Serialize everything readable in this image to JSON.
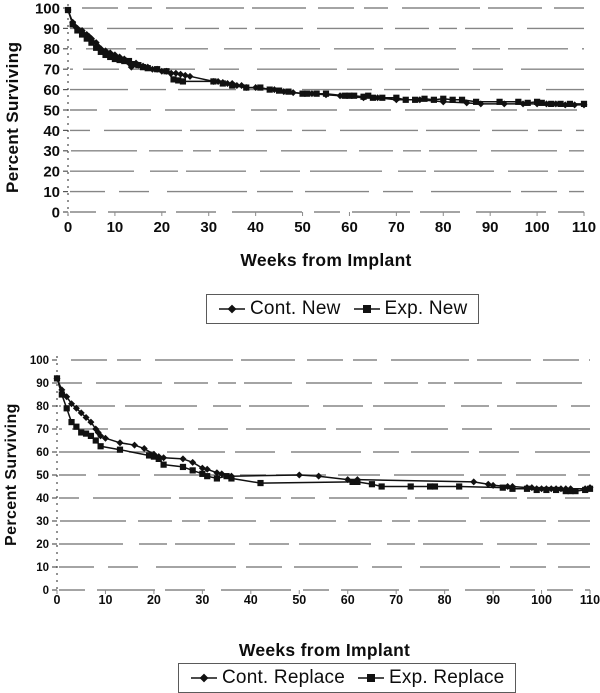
{
  "page": {
    "background": "#ffffff",
    "ink": "#111111",
    "grid_color": "#868686"
  },
  "chart_data": [
    {
      "id": "new-implants-survival",
      "type": "line",
      "title": "",
      "xlabel": "Weeks from Implant",
      "ylabel": "Percent Surviving",
      "xlim": [
        0,
        110
      ],
      "ylim": [
        0,
        100
      ],
      "xticks": [
        0,
        10,
        20,
        30,
        40,
        50,
        60,
        70,
        80,
        90,
        100,
        110
      ],
      "yticks": [
        0,
        10,
        20,
        30,
        40,
        50,
        60,
        70,
        80,
        90,
        100
      ],
      "grid": "horizontal broken gray lines",
      "legend_position": "below chart, boxed",
      "series": [
        {
          "name": "Cont. New",
          "marker": "diamond",
          "color": "#111111",
          "points": [
            [
              0,
              99
            ],
            [
              1,
              93
            ],
            [
              1.5,
              91
            ],
            [
              2,
              90
            ],
            [
              3,
              89
            ],
            [
              4,
              87
            ],
            [
              4.5,
              86
            ],
            [
              5,
              85
            ],
            [
              6,
              83
            ],
            [
              6.5,
              81
            ],
            [
              7,
              80
            ],
            [
              8,
              79
            ],
            [
              9,
              78
            ],
            [
              10,
              77
            ],
            [
              11,
              76
            ],
            [
              12,
              75
            ],
            [
              12.5,
              74
            ],
            [
              13,
              73
            ],
            [
              13.5,
              71
            ],
            [
              14.5,
              73
            ],
            [
              15,
              72
            ],
            [
              16,
              71.5
            ],
            [
              17,
              71
            ],
            [
              18,
              70
            ],
            [
              19,
              70
            ],
            [
              20,
              69
            ],
            [
              21,
              69
            ],
            [
              22,
              68
            ],
            [
              23,
              68
            ],
            [
              24,
              67.5
            ],
            [
              25,
              67
            ],
            [
              26,
              66.5
            ],
            [
              31,
              64
            ],
            [
              32,
              64
            ],
            [
              33,
              63.5
            ],
            [
              34,
              63
            ],
            [
              35,
              63
            ],
            [
              36,
              62
            ],
            [
              37,
              62
            ],
            [
              38,
              61
            ],
            [
              40,
              61
            ],
            [
              44,
              60
            ],
            [
              46,
              59
            ],
            [
              48,
              58.5
            ],
            [
              52,
              58
            ],
            [
              55,
              57.5
            ],
            [
              58,
              57
            ],
            [
              63,
              56
            ],
            [
              66,
              56
            ],
            [
              70,
              55
            ],
            [
              75,
              55
            ],
            [
              80,
              54
            ],
            [
              85,
              53.5
            ],
            [
              88,
              53
            ],
            [
              93,
              53
            ],
            [
              97,
              53
            ],
            [
              100,
              53
            ],
            [
              102,
              53
            ],
            [
              104,
              53
            ],
            [
              106,
              52.5
            ],
            [
              108,
              52.5
            ],
            [
              110,
              52.5
            ]
          ]
        },
        {
          "name": "Exp. New",
          "marker": "square",
          "color": "#111111",
          "points": [
            [
              0,
              99
            ],
            [
              1,
              92
            ],
            [
              2,
              89
            ],
            [
              3,
              87
            ],
            [
              4,
              85
            ],
            [
              5,
              83
            ],
            [
              6,
              80.5
            ],
            [
              7,
              78.5
            ],
            [
              8,
              77
            ],
            [
              9,
              76
            ],
            [
              10,
              75
            ],
            [
              11,
              74.5
            ],
            [
              12,
              74
            ],
            [
              13,
              74
            ],
            [
              14,
              72.5
            ],
            [
              15,
              72
            ],
            [
              16,
              71
            ],
            [
              17,
              70.5
            ],
            [
              19,
              70
            ],
            [
              21,
              69
            ],
            [
              22.5,
              65
            ],
            [
              23.5,
              64.5
            ],
            [
              24.5,
              64
            ],
            [
              31,
              64
            ],
            [
              33,
              63
            ],
            [
              35,
              62
            ],
            [
              38,
              61
            ],
            [
              41,
              61
            ],
            [
              43,
              60
            ],
            [
              45,
              59.5
            ],
            [
              47,
              59
            ],
            [
              50,
              58
            ],
            [
              51,
              58
            ],
            [
              53,
              58
            ],
            [
              55,
              58
            ],
            [
              59,
              57
            ],
            [
              60,
              57
            ],
            [
              61,
              57
            ],
            [
              63,
              56.5
            ],
            [
              64,
              57
            ],
            [
              65,
              56
            ],
            [
              67,
              56
            ],
            [
              70,
              56
            ],
            [
              72,
              55
            ],
            [
              74,
              55
            ],
            [
              76,
              55.5
            ],
            [
              78,
              55
            ],
            [
              80,
              55.5
            ],
            [
              82,
              55
            ],
            [
              84,
              55
            ],
            [
              87,
              54
            ],
            [
              92,
              54
            ],
            [
              96,
              54
            ],
            [
              98,
              53.5
            ],
            [
              100,
              54
            ],
            [
              101,
              53.5
            ],
            [
              103,
              53
            ],
            [
              105,
              53
            ],
            [
              107,
              53
            ],
            [
              110,
              53
            ]
          ]
        }
      ]
    },
    {
      "id": "replacement-implants-survival",
      "type": "line",
      "title": "",
      "xlabel": "Weeks from Implant",
      "ylabel": "Percent Surviving",
      "xlim": [
        0,
        110
      ],
      "ylim": [
        0,
        100
      ],
      "xticks": [
        0,
        10,
        20,
        30,
        40,
        50,
        60,
        70,
        80,
        90,
        100,
        110
      ],
      "yticks": [
        0,
        10,
        20,
        30,
        40,
        50,
        60,
        70,
        80,
        90,
        100
      ],
      "grid": "horizontal broken gray lines",
      "legend_position": "below chart, boxed",
      "series": [
        {
          "name": "Cont. Replace",
          "marker": "diamond",
          "color": "#111111",
          "points": [
            [
              0,
              92
            ],
            [
              1,
              87
            ],
            [
              2,
              84
            ],
            [
              3,
              81
            ],
            [
              4,
              79
            ],
            [
              5,
              77
            ],
            [
              6,
              75
            ],
            [
              7,
              73
            ],
            [
              8,
              70
            ],
            [
              8.5,
              68.5
            ],
            [
              9,
              67
            ],
            [
              10,
              66
            ],
            [
              13,
              64
            ],
            [
              16,
              63
            ],
            [
              18,
              61.5
            ],
            [
              20,
              59
            ],
            [
              21,
              58
            ],
            [
              22,
              57.5
            ],
            [
              26,
              57
            ],
            [
              28,
              55.5
            ],
            [
              30,
              53
            ],
            [
              31,
              52.5
            ],
            [
              33,
              51
            ],
            [
              34,
              50.5
            ],
            [
              36,
              49.5
            ],
            [
              50,
              50
            ],
            [
              54,
              49.5
            ],
            [
              60,
              48
            ],
            [
              62,
              48
            ],
            [
              86,
              47
            ],
            [
              89,
              46
            ],
            [
              90,
              45.5
            ],
            [
              93,
              45
            ],
            [
              94,
              45
            ],
            [
              97,
              44.5
            ],
            [
              98,
              44.5
            ],
            [
              99,
              44
            ],
            [
              100,
              44
            ],
            [
              101,
              44
            ],
            [
              102,
              44
            ],
            [
              103,
              44
            ],
            [
              104,
              44
            ],
            [
              105,
              44
            ],
            [
              106,
              44
            ],
            [
              109,
              44
            ],
            [
              110,
              44.5
            ]
          ]
        },
        {
          "name": "Exp. Replace",
          "marker": "square",
          "color": "#111111",
          "points": [
            [
              0,
              92
            ],
            [
              1,
              85
            ],
            [
              2,
              79
            ],
            [
              3,
              73
            ],
            [
              4,
              71
            ],
            [
              5,
              68.5
            ],
            [
              6,
              68
            ],
            [
              7,
              67
            ],
            [
              8,
              65
            ],
            [
              9,
              62.5
            ],
            [
              13,
              61
            ],
            [
              19,
              58.5
            ],
            [
              20,
              58
            ],
            [
              21,
              57
            ],
            [
              22,
              54.5
            ],
            [
              26,
              53.5
            ],
            [
              28,
              52
            ],
            [
              30,
              50.5
            ],
            [
              31,
              49.5
            ],
            [
              33,
              48.5
            ],
            [
              35,
              49.5
            ],
            [
              36,
              48.5
            ],
            [
              42,
              46.5
            ],
            [
              61,
              47
            ],
            [
              62,
              47
            ],
            [
              65,
              46
            ],
            [
              67,
              45
            ],
            [
              73,
              45
            ],
            [
              77,
              45
            ],
            [
              78,
              45
            ],
            [
              83,
              45
            ],
            [
              92,
              44.5
            ],
            [
              94,
              44
            ],
            [
              97,
              44
            ],
            [
              99,
              43.5
            ],
            [
              101,
              43.5
            ],
            [
              103,
              43.5
            ],
            [
              105,
              43
            ],
            [
              106,
              43
            ],
            [
              107,
              43
            ],
            [
              109,
              43.5
            ],
            [
              110,
              44
            ]
          ]
        }
      ]
    }
  ]
}
